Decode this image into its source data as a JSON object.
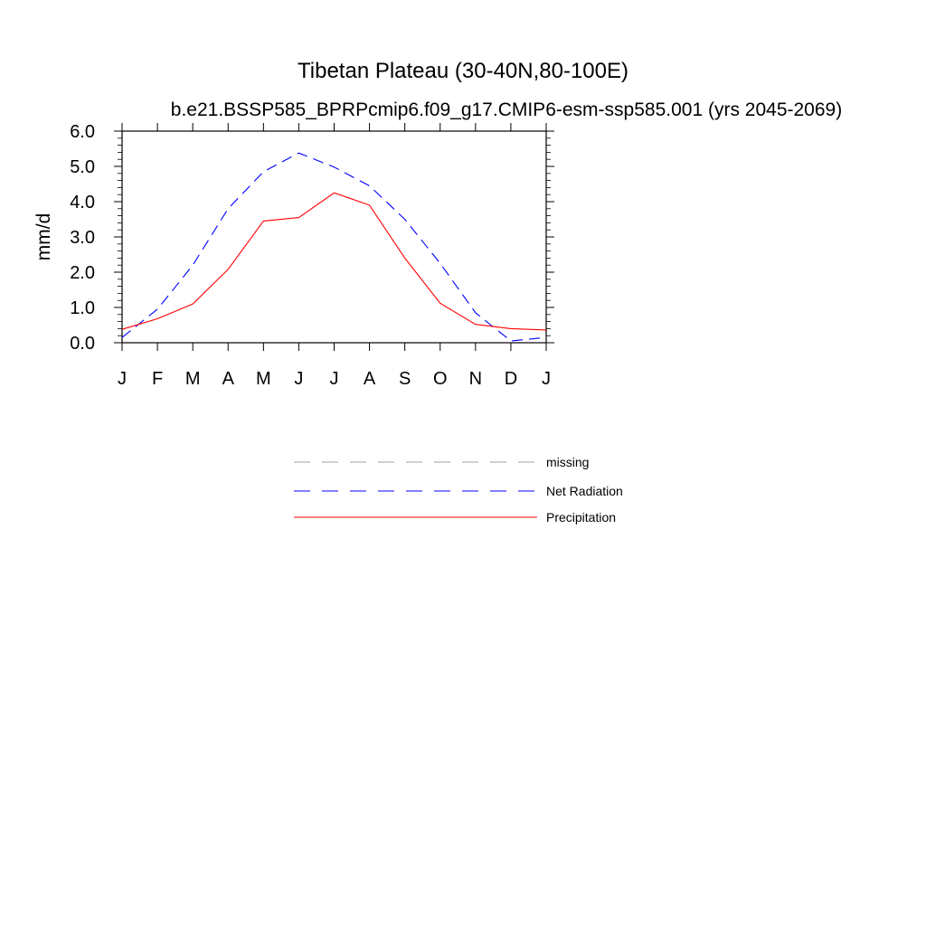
{
  "chart_data": {
    "type": "line",
    "title": "Tibetan Plateau (30-40N,80-100E)",
    "subtitle": "b.e21.BSSP585_BPRPcmip6.f09_g17.CMIP6-esm-ssp585.001 (yrs 2045-2069)",
    "ylabel": "mm/d",
    "xlabel": "",
    "ylim": [
      0,
      6
    ],
    "yticks": [
      "0.0",
      "1.0",
      "2.0",
      "3.0",
      "4.0",
      "5.0",
      "6.0"
    ],
    "categories": [
      "J",
      "F",
      "M",
      "A",
      "M",
      "J",
      "J",
      "A",
      "S",
      "O",
      "N",
      "D",
      "J"
    ],
    "series": [
      {
        "name": "Net Radiation",
        "color": "#0000ff",
        "dash": "dashed",
        "values": [
          0.15,
          0.95,
          2.2,
          3.8,
          4.85,
          5.38,
          4.98,
          4.45,
          3.5,
          2.25,
          0.85,
          0.05,
          0.15
        ]
      },
      {
        "name": "Precipitation",
        "color": "#ff0000",
        "dash": "solid",
        "values": [
          0.38,
          0.68,
          1.1,
          2.08,
          3.45,
          3.55,
          4.25,
          3.9,
          2.4,
          1.12,
          0.52,
          0.4,
          0.36
        ]
      }
    ],
    "grid": false,
    "legend_position": "bottom-center"
  },
  "legend": [
    {
      "label": "missing",
      "color": "#a0a0a0",
      "dash": "dashed"
    },
    {
      "label": "Net Radiation",
      "color": "#0000ff",
      "dash": "dashed"
    },
    {
      "label": "Precipitation",
      "color": "#ff0000",
      "dash": "solid"
    }
  ]
}
